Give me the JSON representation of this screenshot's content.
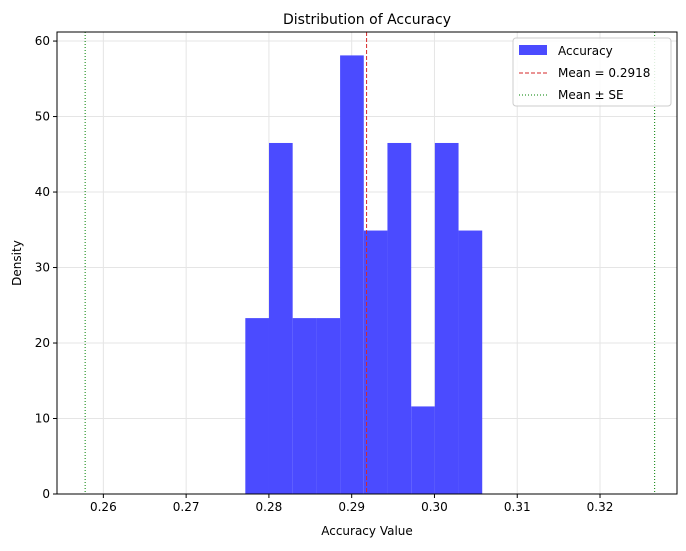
{
  "chart_data": {
    "type": "bar",
    "subtype": "histogram",
    "title": "Distribution of Accuracy",
    "xlabel": "Accuracy Value",
    "ylabel": "Density",
    "xlim": [
      0.2544,
      0.3293
    ],
    "ylim": [
      0,
      61.2
    ],
    "xticks": [
      0.26,
      0.27,
      0.28,
      0.29,
      0.3,
      0.31,
      0.32
    ],
    "xtick_labels": [
      "0.26",
      "0.27",
      "0.28",
      "0.29",
      "0.30",
      "0.31",
      "0.32"
    ],
    "yticks": [
      0,
      10,
      20,
      30,
      40,
      50,
      60
    ],
    "ytick_labels": [
      "0",
      "10",
      "20",
      "30",
      "40",
      "50",
      "60"
    ],
    "grid": true,
    "bin_edges": [
      0.27715,
      0.28001,
      0.28287,
      0.28574,
      0.2886,
      0.29146,
      0.29432,
      0.29719,
      0.30005,
      0.30291,
      0.30577
    ],
    "values": [
      23.3,
      46.5,
      23.3,
      23.3,
      58.1,
      34.9,
      46.5,
      11.6,
      46.5,
      34.9
    ],
    "bar_color": "#4b4bff",
    "mean": 0.2918,
    "mean_color": "#d62728",
    "se_lines": [
      0.2578,
      0.3266
    ],
    "se_color": "#008000",
    "legend": {
      "placement": "top-right",
      "entries": [
        "Accuracy",
        "Mean = 0.2918",
        "Mean ± SE"
      ]
    }
  }
}
